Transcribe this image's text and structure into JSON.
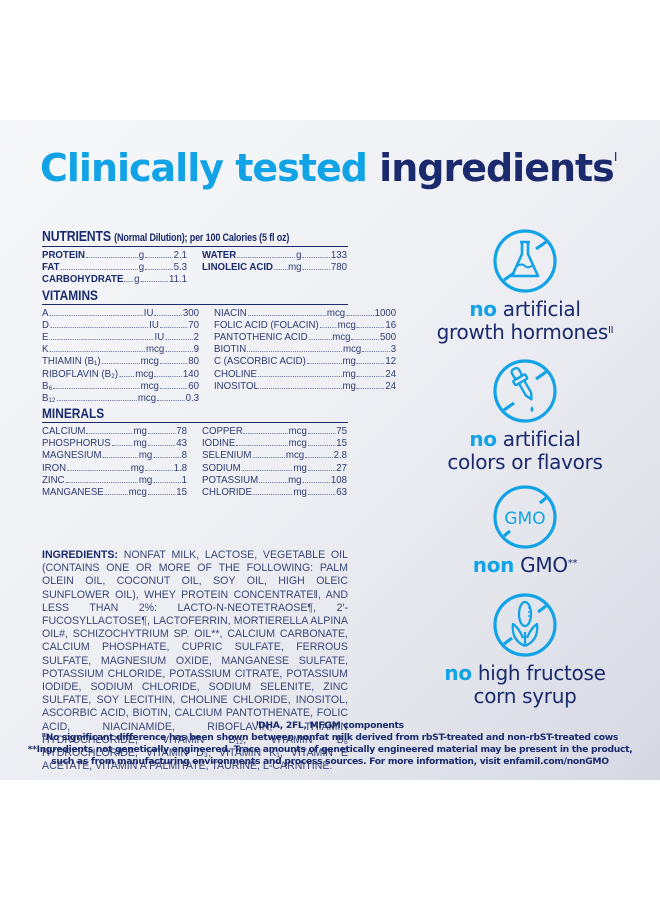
{
  "title": {
    "part1": "Clinically tested",
    "part2": "ingredients",
    "superscript": "I"
  },
  "colors": {
    "accent_blue": "#12a3e6",
    "navy": "#1a2a6c"
  },
  "nutrients": {
    "header": "NUTRIENTS",
    "header_note": "(Normal Dilution); per 100 Calories (5 fl oz)",
    "macros": [
      {
        "name": "PROTEIN",
        "unit": "g",
        "value": "2.1"
      },
      {
        "name": "WATER",
        "unit": "g",
        "value": "133"
      },
      {
        "name": "FAT",
        "unit": "g",
        "value": "5.3"
      },
      {
        "name": "LINOLEIC ACID",
        "unit": "mg",
        "value": "780"
      },
      {
        "name": "CARBOHYDRATE",
        "unit": "g",
        "value": "11.1"
      }
    ],
    "vitamins_label": "VITAMINS",
    "vitamins_left": [
      {
        "name": "A",
        "unit": "IU",
        "value": "300"
      },
      {
        "name": "D",
        "unit": "IU",
        "value": "70"
      },
      {
        "name": "E",
        "unit": "IU",
        "value": "2"
      },
      {
        "name": "K",
        "unit": "mcg",
        "value": "9"
      },
      {
        "name": "THIAMIN (B₁)",
        "unit": "mcg",
        "value": "80"
      },
      {
        "name": "RIBOFLAVIN (B₂)",
        "unit": "mcg",
        "value": "140"
      },
      {
        "name": "B₆",
        "unit": "mcg",
        "value": "60"
      },
      {
        "name": "B₁₂",
        "unit": "mcg",
        "value": "0.3"
      }
    ],
    "vitamins_right": [
      {
        "name": "NIACIN",
        "unit": "mcg",
        "value": "1000"
      },
      {
        "name": "FOLIC ACID (FOLACIN)",
        "unit": "mcg",
        "value": "16"
      },
      {
        "name": "PANTOTHENIC ACID",
        "unit": "mcg",
        "value": "500"
      },
      {
        "name": "BIOTIN",
        "unit": "mcg",
        "value": "3"
      },
      {
        "name": "C (ASCORBIC ACID)",
        "unit": "mg",
        "value": "12"
      },
      {
        "name": "CHOLINE",
        "unit": "mg",
        "value": "24"
      },
      {
        "name": "INOSITOL",
        "unit": "mg",
        "value": "24"
      }
    ],
    "minerals_label": "MINERALS",
    "minerals_left": [
      {
        "name": "CALCIUM",
        "unit": "mg",
        "value": "78"
      },
      {
        "name": "PHOSPHORUS",
        "unit": "mg",
        "value": "43"
      },
      {
        "name": "MAGNESIUM",
        "unit": "mg",
        "value": "8"
      },
      {
        "name": "IRON",
        "unit": "mg",
        "value": "1.8"
      },
      {
        "name": "ZINC",
        "unit": "mg",
        "value": "1"
      },
      {
        "name": "MANGANESE",
        "unit": "mcg",
        "value": "15"
      }
    ],
    "minerals_right": [
      {
        "name": "COPPER",
        "unit": "mcg",
        "value": "75"
      },
      {
        "name": "IODINE",
        "unit": "mcg",
        "value": "15"
      },
      {
        "name": "SELENIUM",
        "unit": "mcg",
        "value": "2.8"
      },
      {
        "name": "SODIUM",
        "unit": "mg",
        "value": "27"
      },
      {
        "name": "POTASSIUM",
        "unit": "mg",
        "value": "108"
      },
      {
        "name": "CHLORIDE",
        "unit": "mg",
        "value": "63"
      }
    ]
  },
  "ingredients": {
    "label": "INGREDIENTS:",
    "text": "NONFAT MILK, LACTOSE, VEGETABLE OIL (CONTAINS ONE OR MORE OF THE FOLLOWING: PALM OLEIN OIL, COCONUT OIL, SOY OIL, HIGH OLEIC SUNFLOWER OIL), WHEY PROTEIN CONCENTRATE‖, AND LESS THAN 2%: LACTO-N-NEOTETRAOSE¶, 2′-FUCOSYLLACTOSE¶, LACTOFERRIN, MORTIERELLA ALPINA OIL#, SCHIZOCHYTRIUM SP. OIL**, CALCIUM CARBONATE, CALCIUM PHOSPHATE, CUPRIC SULFATE, FERROUS SULFATE, MAGNESIUM OXIDE, MANGANESE SULFATE, POTASSIUM CHLORIDE, POTASSIUM CITRATE, POTASSIUM IODIDE, SODIUM CHLORIDE, SODIUM SELENITE, ZINC SULFATE, SOY LECITHIN, CHOLINE CHLORIDE, INOSITOL, ASCORBIC ACID, BIOTIN, CALCIUM PANTOTHENATE, FOLIC ACID, NIACINAMIDE, RIBOFLAVIN, THIAMIN HYDROCHLORIDE, VITAMIN B₁₂, VITAMIN B₆ HYDROCHLORIDE, VITAMIN D₃, VITAMIN K₁, VITAMIN E ACETATE, VITAMIN A PALMITATE, TAURINE, L-CARNITINE."
  },
  "footnotes": [
    "ᴵDHA, 2FL, MFGM components",
    "ᴵᴵNo significant difference has been shown between nonfat milk derived from rbST-treated and non-rbST-treated cows",
    "**Ingredients not genetically engineered. Trace amounts of genetically engineered material may be present in the product,",
    "such as from manufacturing environments and process sources. For more information, visit enfamil.com/nonGMO"
  ],
  "claims": [
    {
      "icon": "no-flask-icon",
      "no": "no",
      "line1_rest": " artificial",
      "line2": "growth hormones",
      "sup": "II"
    },
    {
      "icon": "no-dropper-icon",
      "no": "no",
      "line1_rest": " artificial",
      "line2": "colors or flavors",
      "sup": ""
    },
    {
      "icon": "no-gmo-icon",
      "no": "non",
      "line1_rest": " GMO",
      "line2": "",
      "sup": "**",
      "gmo_text": "GMO"
    },
    {
      "icon": "no-corn-icon",
      "no": "no",
      "line1_rest": " high fructose",
      "line2": "corn syrup",
      "sup": ""
    }
  ]
}
